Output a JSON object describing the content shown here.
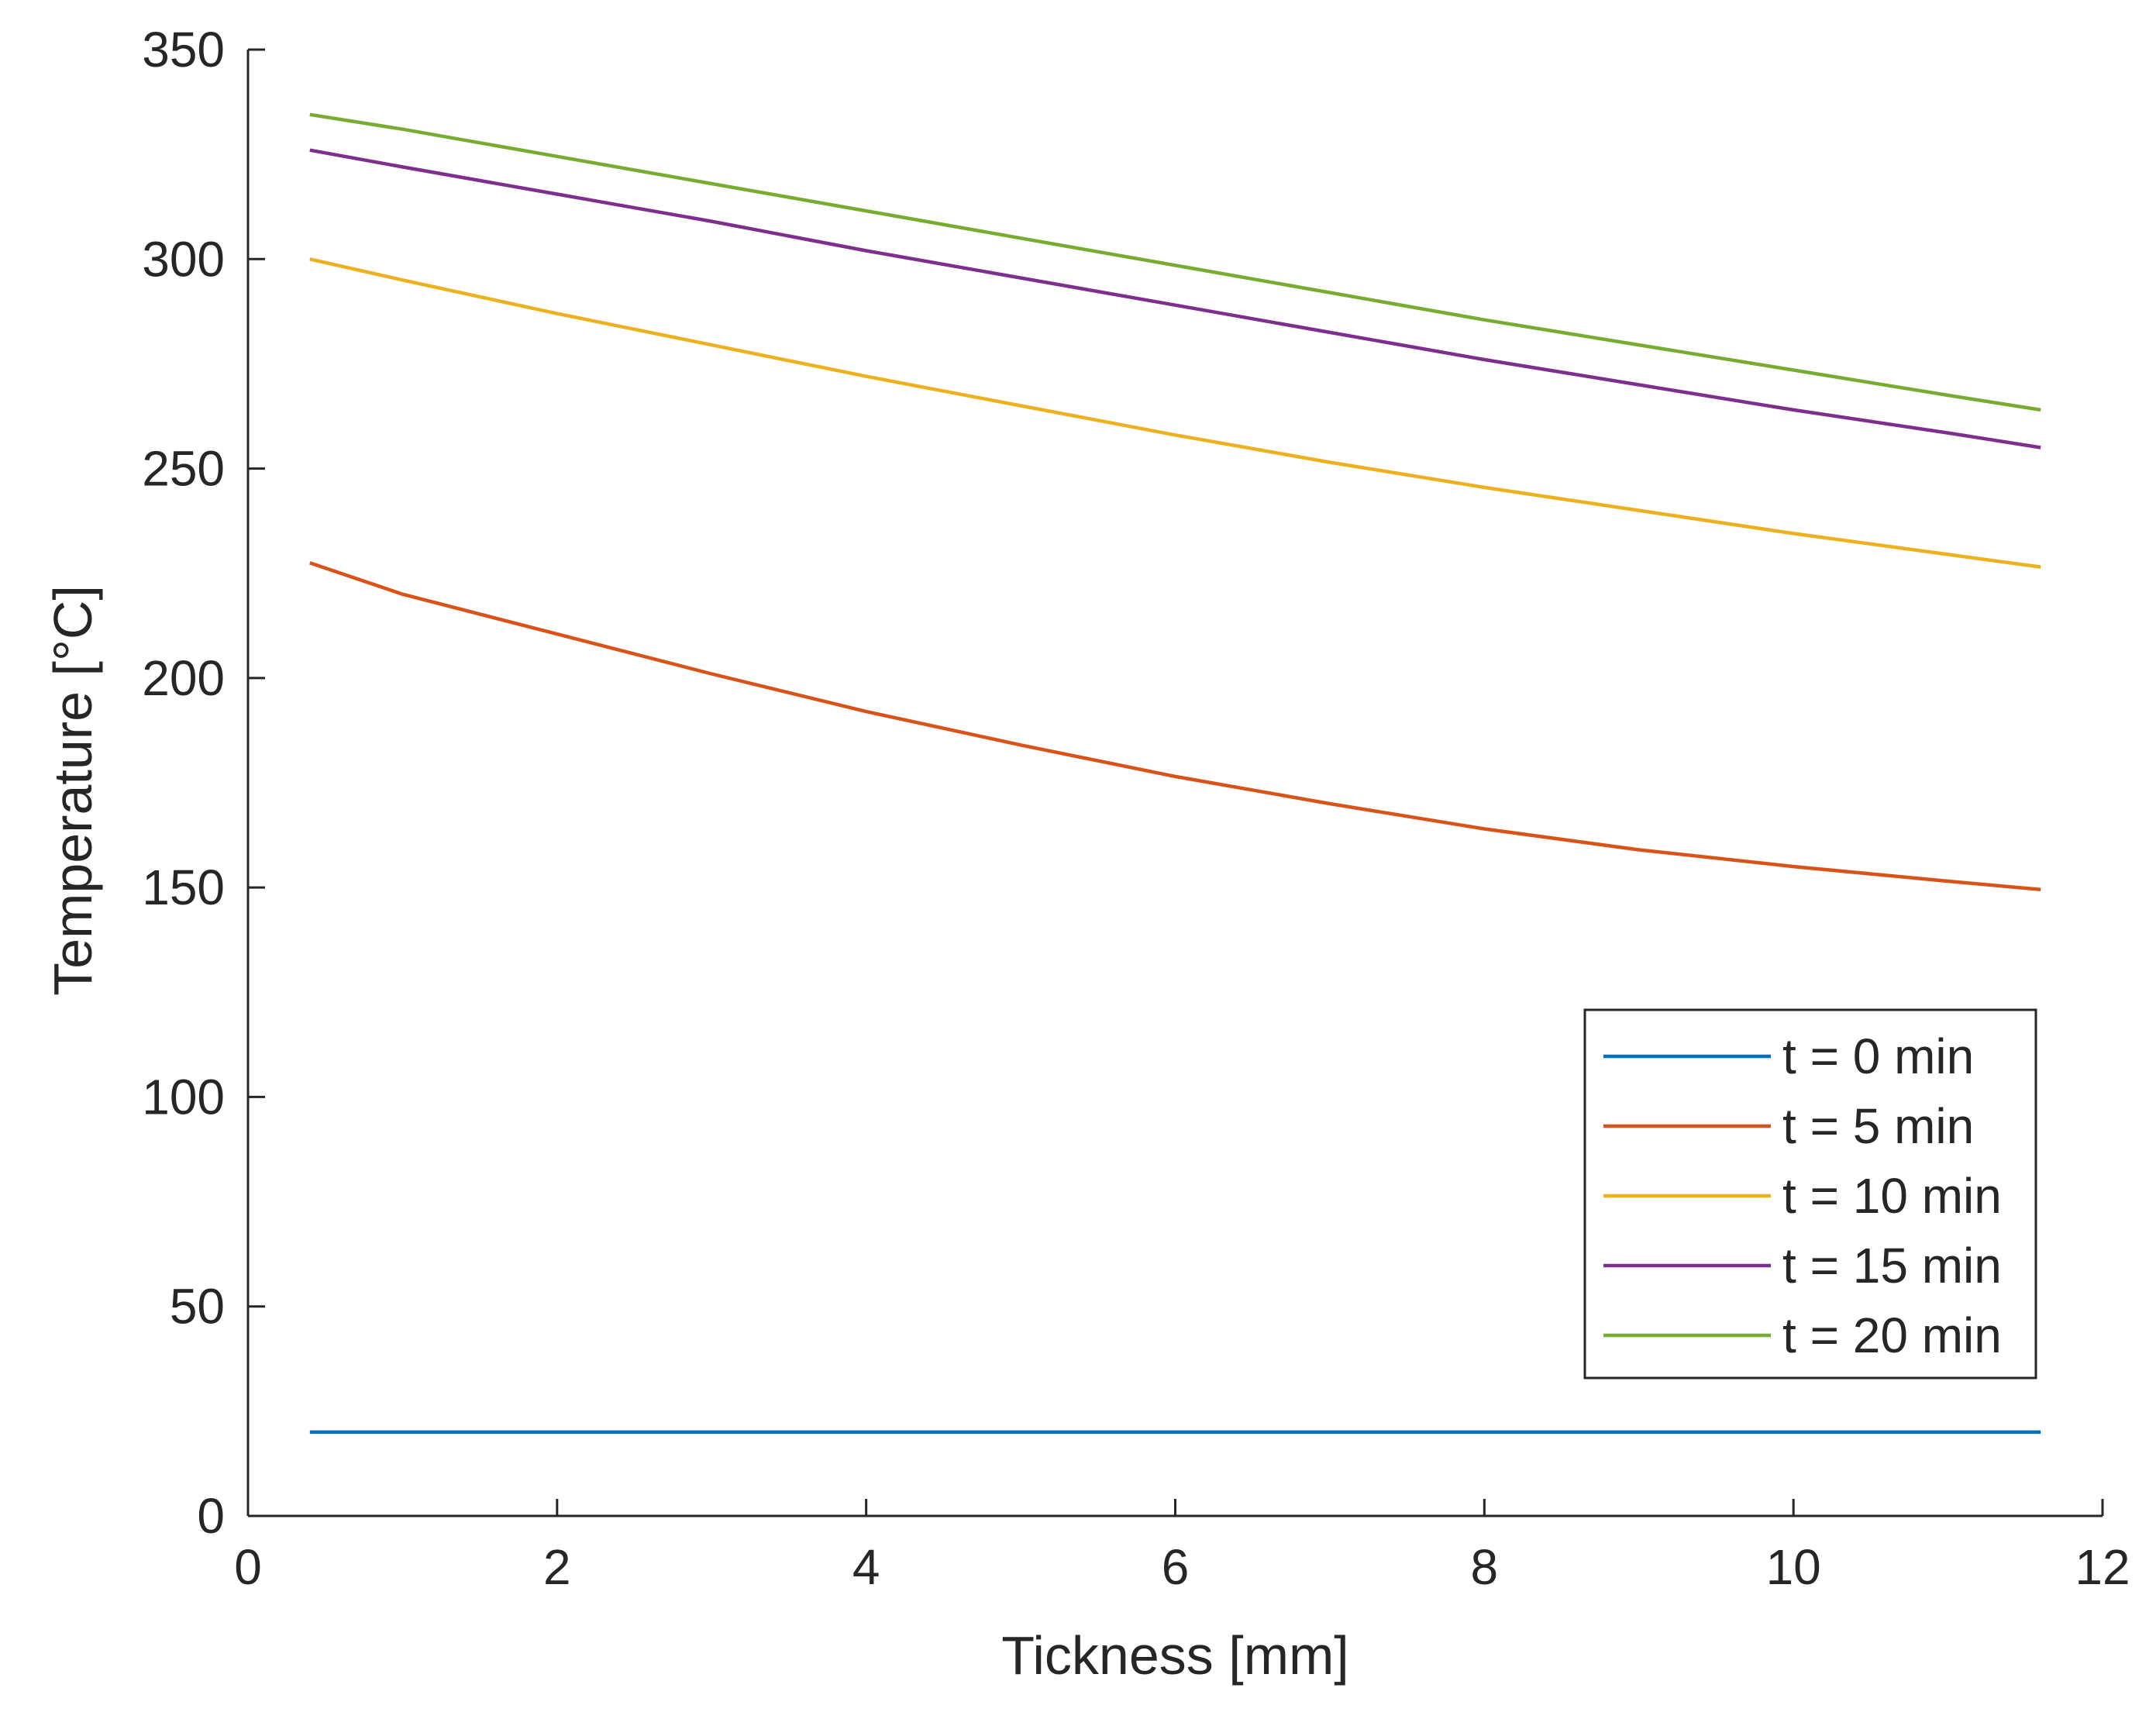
{
  "chart_data": {
    "type": "line",
    "title": "",
    "xlabel": "Tickness [mm]",
    "ylabel": "Temperature [°C]",
    "xlim": [
      0,
      12
    ],
    "ylim": [
      0,
      350
    ],
    "xticks": [
      0,
      2,
      4,
      6,
      8,
      10,
      12
    ],
    "yticks": [
      0,
      50,
      100,
      150,
      200,
      250,
      300,
      350
    ],
    "grid": false,
    "legend_position": "lower-right",
    "series": [
      {
        "name": "t = 0 min",
        "color": "#0072BD",
        "x": [
          0.4,
          1,
          2,
          3,
          4,
          5,
          6,
          7,
          8,
          9,
          10,
          11,
          11.6
        ],
        "y": [
          20,
          20,
          20,
          20,
          20,
          20,
          20,
          20,
          20,
          20,
          20,
          20,
          20
        ]
      },
      {
        "name": "t = 5 min",
        "color": "#D95319",
        "x": [
          0.4,
          1,
          2,
          3,
          4,
          5,
          6,
          7,
          8,
          9,
          10,
          11,
          11.6
        ],
        "y": [
          227.5,
          220,
          210.5,
          201,
          192,
          184,
          176.5,
          170,
          164,
          159,
          155,
          151.5,
          149.5
        ]
      },
      {
        "name": "t = 10 min",
        "color": "#EDB120",
        "x": [
          0.4,
          1,
          2,
          3,
          4,
          5,
          6,
          7,
          8,
          9,
          10,
          11,
          11.6
        ],
        "y": [
          300,
          295,
          287,
          279.5,
          272,
          265,
          258,
          251.5,
          245.5,
          240,
          234.5,
          229.5,
          226.5
        ]
      },
      {
        "name": "t = 15 min",
        "color": "#7E2F8E",
        "x": [
          0.4,
          1,
          2,
          3,
          4,
          5,
          6,
          7,
          8,
          9,
          10,
          11,
          11.6
        ],
        "y": [
          326,
          322,
          315.5,
          309,
          302,
          295.5,
          289,
          282.5,
          276,
          270,
          264,
          258.5,
          255
        ]
      },
      {
        "name": "t = 20 min",
        "color": "#77AC30",
        "x": [
          0.4,
          1,
          2,
          3,
          4,
          5,
          6,
          7,
          8,
          9,
          10,
          11,
          11.6
        ],
        "y": [
          334.5,
          331,
          324.5,
          318,
          311.5,
          305,
          298.5,
          292,
          285.5,
          279.5,
          273.5,
          267.5,
          264
        ]
      }
    ]
  }
}
